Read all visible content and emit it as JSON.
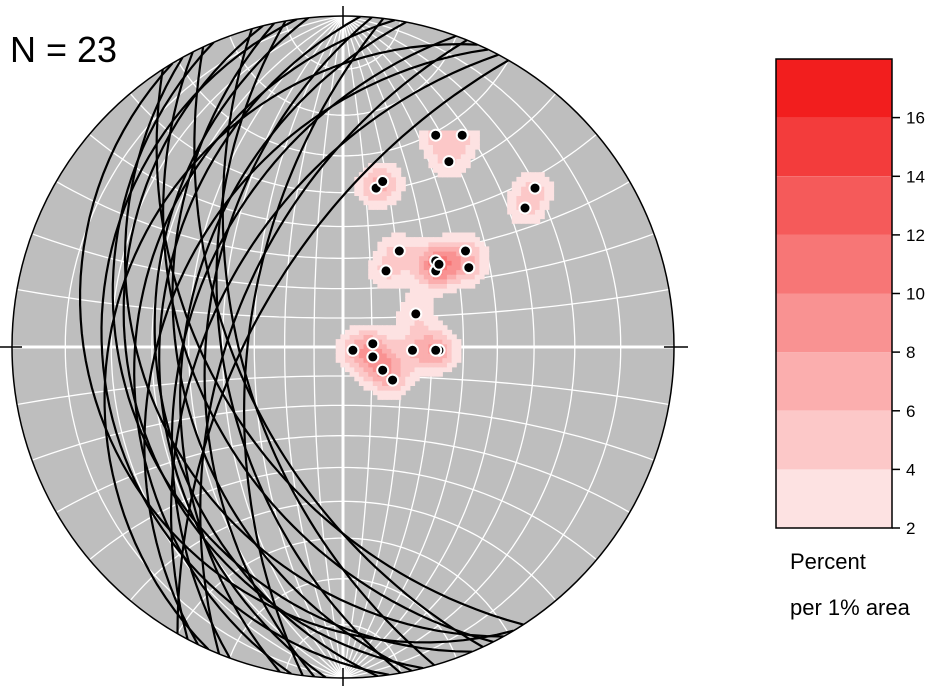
{
  "chart_data": {
    "type": "stereonet",
    "annotation": "N = 23",
    "colors": {
      "net_fill": "#bebebe",
      "grid": "#ffffff",
      "great_circle": "#000000",
      "pole": "#000000"
    },
    "great_circle_count": 23,
    "poles": [
      {
        "x": 0.28,
        "y": 0.64
      },
      {
        "x": 0.36,
        "y": 0.64
      },
      {
        "x": 0.32,
        "y": 0.56
      },
      {
        "x": 0.58,
        "y": 0.48
      },
      {
        "x": 0.55,
        "y": 0.42
      },
      {
        "x": 0.1,
        "y": 0.48
      },
      {
        "x": 0.12,
        "y": 0.5
      },
      {
        "x": 0.17,
        "y": 0.29
      },
      {
        "x": 0.28,
        "y": 0.26
      },
      {
        "x": 0.28,
        "y": 0.23
      },
      {
        "x": 0.37,
        "y": 0.29
      },
      {
        "x": 0.38,
        "y": 0.24
      },
      {
        "x": 0.29,
        "y": 0.25
      },
      {
        "x": 0.13,
        "y": 0.23
      },
      {
        "x": 0.22,
        "y": 0.1
      },
      {
        "x": 0.12,
        "y": -0.07
      },
      {
        "x": 0.29,
        "y": -0.01
      },
      {
        "x": 0.09,
        "y": -0.03
      },
      {
        "x": 0.21,
        "y": -0.01
      },
      {
        "x": 0.28,
        "y": -0.01
      },
      {
        "x": 0.03,
        "y": -0.01
      },
      {
        "x": 0.09,
        "y": 0.01
      },
      {
        "x": 0.15,
        "y": -0.1
      }
    ],
    "legend": {
      "title_line1": "Percent",
      "title_line2": "per 1% area",
      "ticks": [
        "2",
        "4",
        "6",
        "8",
        "10",
        "12",
        "14",
        "16"
      ],
      "range": [
        2,
        18
      ],
      "levels": [
        2,
        4,
        6,
        8,
        10,
        12,
        14,
        16,
        18
      ],
      "colors": [
        "#fde2e2",
        "#fcc8c8",
        "#fbaeae",
        "#f99292",
        "#f77676",
        "#f55a5a",
        "#f33c3c",
        "#f21e1e",
        "#f00000"
      ]
    }
  }
}
